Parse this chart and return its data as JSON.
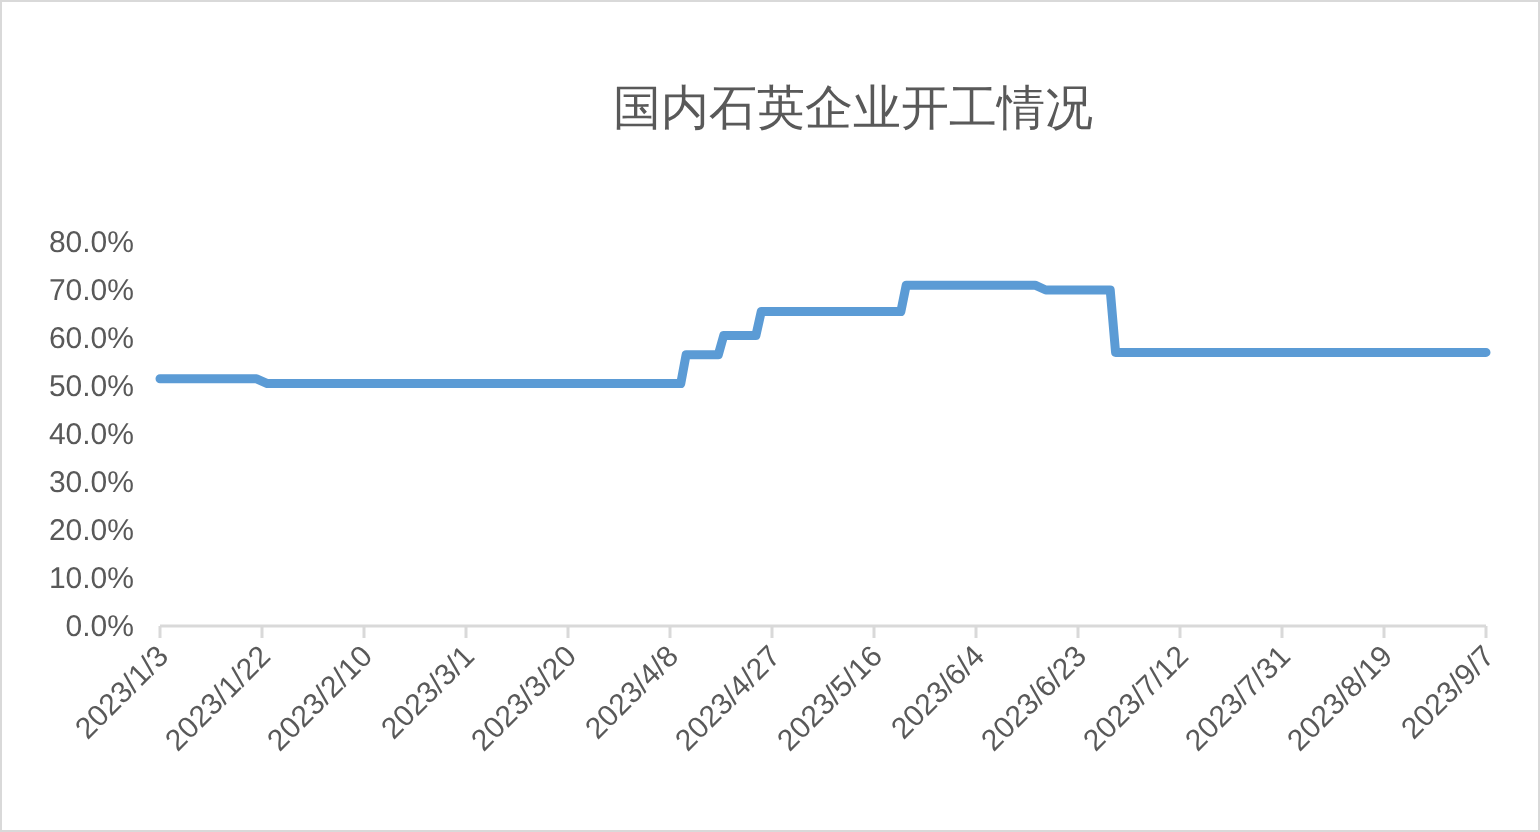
{
  "chart_data": {
    "type": "line",
    "title": "国内石英企业开工情况",
    "x": [
      "2023-01-03",
      "2023-01-21",
      "2023-01-23",
      "2023-04-10",
      "2023-04-11",
      "2023-04-17",
      "2023-04-18",
      "2023-04-24",
      "2023-04-25",
      "2023-05-21",
      "2023-05-22",
      "2023-06-15",
      "2023-06-17",
      "2023-06-29",
      "2023-06-30",
      "2023-09-07"
    ],
    "series": [
      {
        "color": "#5b9bd5",
        "values": [
          51.5,
          51.5,
          50.5,
          50.5,
          56.5,
          56.5,
          60.5,
          60.5,
          65.5,
          65.5,
          71,
          71,
          70,
          70,
          57,
          57
        ]
      }
    ],
    "xlim": [
      "2023-01-03",
      "2023-09-07"
    ],
    "xticks": [
      {
        "value": "2023-01-03",
        "label": "2023/1/3"
      },
      {
        "value": "2023-01-22",
        "label": "2023/1/22"
      },
      {
        "value": "2023-02-10",
        "label": "2023/2/10"
      },
      {
        "value": "2023-03-01",
        "label": "2023/3/1"
      },
      {
        "value": "2023-03-20",
        "label": "2023/3/20"
      },
      {
        "value": "2023-04-08",
        "label": "2023/4/8"
      },
      {
        "value": "2023-04-27",
        "label": "2023/4/27"
      },
      {
        "value": "2023-05-16",
        "label": "2023/5/16"
      },
      {
        "value": "2023-06-04",
        "label": "2023/6/4"
      },
      {
        "value": "2023-06-23",
        "label": "2023/6/23"
      },
      {
        "value": "2023-07-12",
        "label": "2023/7/12"
      },
      {
        "value": "2023-07-31",
        "label": "2023/7/31"
      },
      {
        "value": "2023-08-19",
        "label": "2023/8/19"
      },
      {
        "value": "2023-09-07",
        "label": "2023/9/7"
      }
    ],
    "ylim": [
      0,
      80
    ],
    "yticks": [
      {
        "value": 0,
        "label": "0.0%"
      },
      {
        "value": 10,
        "label": "10.0%"
      },
      {
        "value": 20,
        "label": "20.0%"
      },
      {
        "value": 30,
        "label": "30.0%"
      },
      {
        "value": 40,
        "label": "40.0%"
      },
      {
        "value": 50,
        "label": "50.0%"
      },
      {
        "value": 60,
        "label": "60.0%"
      },
      {
        "value": 70,
        "label": "70.0%"
      },
      {
        "value": 80,
        "label": "80.0%"
      }
    ],
    "grid": false,
    "marker": "none",
    "line_style": "solid"
  }
}
